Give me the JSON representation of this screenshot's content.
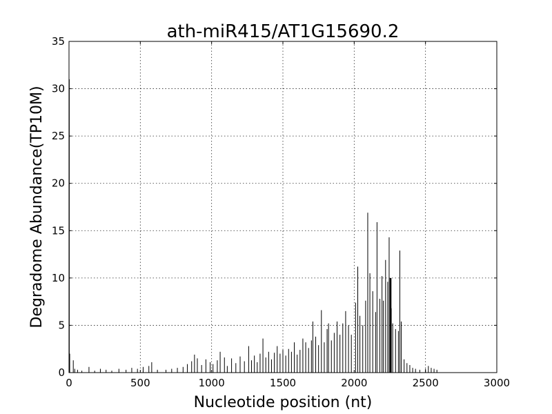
{
  "chart_data": {
    "type": "bar",
    "title": "ath-miR415/AT1G15690.2",
    "xlabel": "Nucleotide position (nt)",
    "ylabel": "Degradome Abundance(TP10M)",
    "xlim": [
      0,
      3000
    ],
    "ylim": [
      0,
      35
    ],
    "xticks": [
      "0",
      "500",
      "1000",
      "1500",
      "2000",
      "2500",
      "3000"
    ],
    "yticks": [
      "0",
      "5",
      "10",
      "15",
      "20",
      "25",
      "30",
      "35"
    ],
    "grid": true,
    "colors": {
      "bars": "#000000",
      "highlight": "#d62728"
    },
    "series": [
      {
        "points": [
          [
            2,
            31.0
          ],
          [
            5,
            2.0
          ],
          [
            30,
            1.3
          ],
          [
            40,
            0.4
          ],
          [
            60,
            0.3
          ],
          [
            90,
            0.2
          ],
          [
            140,
            0.6
          ],
          [
            180,
            0.2
          ],
          [
            220,
            0.4
          ],
          [
            260,
            0.3
          ],
          [
            300,
            0.2
          ],
          [
            350,
            0.4
          ],
          [
            400,
            0.3
          ],
          [
            440,
            0.5
          ],
          [
            480,
            0.4
          ],
          [
            520,
            0.6
          ],
          [
            560,
            0.7
          ],
          [
            580,
            1.1
          ],
          [
            620,
            0.3
          ],
          [
            680,
            0.3
          ],
          [
            720,
            0.4
          ],
          [
            760,
            0.5
          ],
          [
            800,
            0.6
          ],
          [
            830,
            0.9
          ],
          [
            860,
            1.2
          ],
          [
            880,
            1.9
          ],
          [
            900,
            1.5
          ],
          [
            930,
            0.8
          ],
          [
            960,
            1.4
          ],
          [
            990,
            1.1
          ],
          [
            1010,
            0.9
          ],
          [
            1040,
            1.3
          ],
          [
            1060,
            2.2
          ],
          [
            1090,
            1.6
          ],
          [
            1110,
            0.7
          ],
          [
            1140,
            1.5
          ],
          [
            1170,
            1.0
          ],
          [
            1200,
            1.7
          ],
          [
            1230,
            1.2
          ],
          [
            1260,
            2.8
          ],
          [
            1280,
            1.3
          ],
          [
            1300,
            1.8
          ],
          [
            1320,
            1.1
          ],
          [
            1340,
            2.0
          ],
          [
            1360,
            3.6
          ],
          [
            1380,
            1.6
          ],
          [
            1400,
            2.2
          ],
          [
            1420,
            1.4
          ],
          [
            1440,
            2.1
          ],
          [
            1460,
            2.8
          ],
          [
            1480,
            2.0
          ],
          [
            1500,
            2.4
          ],
          [
            1520,
            1.8
          ],
          [
            1540,
            2.5
          ],
          [
            1560,
            2.2
          ],
          [
            1580,
            3.2
          ],
          [
            1600,
            1.9
          ],
          [
            1620,
            2.4
          ],
          [
            1640,
            3.6
          ],
          [
            1660,
            3.2
          ],
          [
            1680,
            2.6
          ],
          [
            1700,
            3.4
          ],
          [
            1710,
            5.4
          ],
          [
            1730,
            3.8
          ],
          [
            1750,
            2.9
          ],
          [
            1770,
            6.6
          ],
          [
            1790,
            3.2
          ],
          [
            1810,
            4.6
          ],
          [
            1820,
            5.2
          ],
          [
            1840,
            3.4
          ],
          [
            1860,
            4.2
          ],
          [
            1880,
            5.4
          ],
          [
            1900,
            4.0
          ],
          [
            1920,
            5.2
          ],
          [
            1940,
            6.5
          ],
          [
            1960,
            5.0
          ],
          [
            1980,
            4.0
          ],
          [
            2010,
            7.4
          ],
          [
            2025,
            11.2
          ],
          [
            2040,
            6.0
          ],
          [
            2060,
            5.0
          ],
          [
            2080,
            7.6
          ],
          [
            2095,
            16.9
          ],
          [
            2110,
            10.5
          ],
          [
            2130,
            8.6
          ],
          [
            2150,
            6.4
          ],
          [
            2160,
            15.9
          ],
          [
            2180,
            7.8
          ],
          [
            2195,
            10.2
          ],
          [
            2205,
            7.6
          ],
          [
            2220,
            11.9
          ],
          [
            2235,
            9.6
          ],
          [
            2245,
            14.3
          ],
          [
            2260,
            6.8
          ],
          [
            2270,
            5.2
          ],
          [
            2290,
            4.6
          ],
          [
            2310,
            4.4
          ],
          [
            2320,
            12.9
          ],
          [
            2330,
            5.4
          ],
          [
            2350,
            1.4
          ],
          [
            2370,
            1.0
          ],
          [
            2390,
            0.8
          ],
          [
            2410,
            0.5
          ],
          [
            2430,
            0.4
          ],
          [
            2460,
            0.3
          ],
          [
            2500,
            0.4
          ],
          [
            2520,
            0.7
          ],
          [
            2540,
            0.5
          ],
          [
            2560,
            0.4
          ],
          [
            2580,
            0.3
          ]
        ]
      }
    ],
    "highlight": {
      "x": 2255,
      "y": 10.0
    }
  }
}
